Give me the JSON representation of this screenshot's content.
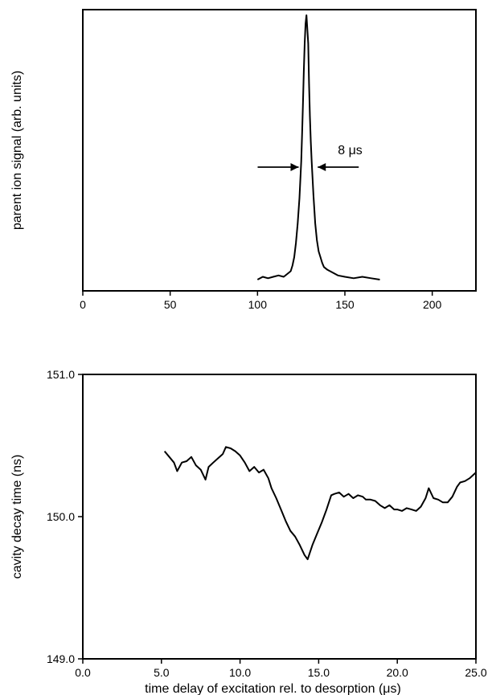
{
  "chart_data": [
    {
      "type": "line",
      "title": "",
      "xlabel": "",
      "ylabel": "parent ion signal (arb. units)",
      "xlim": [
        0,
        225
      ],
      "ylim": [
        0,
        1
      ],
      "grid": false,
      "x_ticks": [
        "0",
        "50",
        "100",
        "150",
        "200"
      ],
      "x_tick_values": [
        0,
        50,
        100,
        150,
        200
      ],
      "y_ticks": [],
      "annotation": {
        "text": "8 μs",
        "x_from": 124,
        "x_to": 134,
        "y": 0.44
      },
      "series": [
        {
          "x": [
            100,
            103,
            106,
            109,
            112,
            115,
            117,
            119,
            120,
            121,
            122,
            123,
            124,
            125,
            125.5,
            126,
            126.5,
            127,
            127.5,
            128,
            128.5,
            129,
            129.5,
            130,
            130.5,
            131,
            131.5,
            132,
            133,
            134,
            135,
            136,
            137,
            138,
            140,
            143,
            146,
            150,
            155,
            160,
            165,
            170
          ],
          "y": [
            0.04,
            0.05,
            0.045,
            0.05,
            0.055,
            0.05,
            0.06,
            0.07,
            0.09,
            0.12,
            0.17,
            0.24,
            0.33,
            0.46,
            0.56,
            0.66,
            0.78,
            0.88,
            0.95,
            0.98,
            0.93,
            0.88,
            0.74,
            0.62,
            0.53,
            0.46,
            0.4,
            0.34,
            0.24,
            0.18,
            0.14,
            0.12,
            0.1,
            0.085,
            0.075,
            0.065,
            0.055,
            0.05,
            0.045,
            0.05,
            0.045,
            0.04
          ]
        }
      ]
    },
    {
      "type": "line",
      "title": "",
      "xlabel": "time delay of excitation rel. to desorption (μs)",
      "ylabel": "cavity decay time (ns)",
      "xlim": [
        0,
        25
      ],
      "ylim": [
        149.0,
        151.0
      ],
      "grid": false,
      "x_ticks": [
        "0.0",
        "5.0",
        "10.0",
        "15.0",
        "20.0",
        "25.0"
      ],
      "x_tick_values": [
        0,
        5,
        10,
        15,
        20,
        25
      ],
      "y_ticks": [
        "149.0",
        "150.0",
        "151.0"
      ],
      "y_tick_values": [
        149.0,
        150.0,
        151.0
      ],
      "series": [
        {
          "x": [
            5.2,
            5.5,
            5.8,
            6.0,
            6.3,
            6.6,
            6.9,
            7.2,
            7.5,
            7.8,
            8.0,
            8.3,
            8.6,
            8.9,
            9.1,
            9.4,
            9.7,
            10.0,
            10.3,
            10.6,
            10.9,
            11.2,
            11.5,
            11.8,
            12.0,
            12.3,
            12.6,
            12.9,
            13.2,
            13.5,
            13.8,
            14.1,
            14.3,
            14.6,
            14.9,
            15.2,
            15.5,
            15.8,
            16.0,
            16.3,
            16.6,
            16.9,
            17.2,
            17.5,
            17.8,
            18.0,
            18.3,
            18.6,
            18.9,
            19.2,
            19.5,
            19.8,
            20.0,
            20.3,
            20.6,
            20.9,
            21.2,
            21.5,
            21.8,
            22.0,
            22.3,
            22.6,
            22.9,
            23.2,
            23.5,
            23.8,
            24.0,
            24.3,
            24.6,
            24.9,
            25.0
          ],
          "y": [
            150.46,
            150.42,
            150.38,
            150.32,
            150.38,
            150.39,
            150.42,
            150.36,
            150.33,
            150.26,
            150.35,
            150.38,
            150.41,
            150.44,
            150.49,
            150.48,
            150.46,
            150.43,
            150.38,
            150.32,
            150.35,
            150.31,
            150.33,
            150.27,
            150.2,
            150.13,
            150.05,
            149.97,
            149.9,
            149.86,
            149.8,
            149.73,
            149.7,
            149.8,
            149.88,
            149.96,
            150.05,
            150.15,
            150.16,
            150.17,
            150.14,
            150.16,
            150.13,
            150.15,
            150.14,
            150.12,
            150.12,
            150.11,
            150.08,
            150.06,
            150.08,
            150.05,
            150.05,
            150.04,
            150.06,
            150.05,
            150.04,
            150.07,
            150.13,
            150.2,
            150.13,
            150.12,
            150.1,
            150.1,
            150.14,
            150.21,
            150.24,
            150.25,
            150.27,
            150.3,
            150.31
          ]
        }
      ]
    }
  ]
}
